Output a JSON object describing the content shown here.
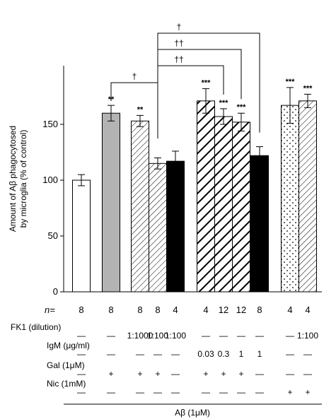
{
  "chart_data": {
    "type": "bar",
    "ylabel_lines": [
      "Amount of Aβ phagocytosed",
      "by microglia (% of control)"
    ],
    "ylim": [
      0,
      200
    ],
    "yticks": [
      "0",
      "50",
      "100",
      "150"
    ],
    "ytick_values": [
      0,
      50,
      100,
      150
    ],
    "bars": [
      {
        "value": 100,
        "error": 5,
        "fill": "white",
        "stars": "",
        "n": "8"
      },
      {
        "value": 160,
        "error": 7,
        "fill": "gray",
        "stars": "**",
        "n": "8"
      },
      {
        "value": 153,
        "error": 5,
        "fill": "hatch-light",
        "stars": "**",
        "n": "8"
      },
      {
        "value": 115,
        "error": 5,
        "fill": "hatch-light",
        "stars": "",
        "n": "8"
      },
      {
        "value": 117,
        "error": 9,
        "fill": "black",
        "stars": "",
        "n": "4"
      },
      {
        "value": 171,
        "error": 11,
        "fill": "hatch-bold",
        "stars": "***",
        "n": "4"
      },
      {
        "value": 157,
        "error": 7,
        "fill": "hatch-bold",
        "stars": "***",
        "n": "12"
      },
      {
        "value": 152,
        "error": 8,
        "fill": "hatch-bold",
        "stars": "***",
        "n": "12"
      },
      {
        "value": 122,
        "error": 8,
        "fill": "black",
        "stars": "",
        "n": "8"
      },
      {
        "value": 167,
        "error": 16,
        "fill": "dots",
        "stars": "***",
        "n": "4"
      },
      {
        "value": 171,
        "error": 6,
        "fill": "hatch-light",
        "stars": "***",
        "n": "4"
      }
    ],
    "brackets": [
      {
        "from": 1,
        "to": 3,
        "label": "†"
      },
      {
        "from": 3,
        "to": 6,
        "label": "††"
      },
      {
        "from": 3,
        "to": 7,
        "label": "††"
      },
      {
        "from": 3,
        "to": 8,
        "label": "†"
      }
    ]
  },
  "table": {
    "n_label": "n=",
    "rows": [
      {
        "label": "FK1 (dilution)",
        "cells": [
          "—",
          "—",
          "1:1000",
          "1:100",
          "1:100",
          "—",
          "—",
          "—",
          "—",
          "—",
          "1:100"
        ]
      },
      {
        "label": "IgM (μg/ml)",
        "cells": [
          "—",
          "—",
          "—",
          "—",
          "—",
          "0.03",
          "0.3",
          "1",
          "1",
          "—",
          "—"
        ]
      },
      {
        "label": "Gal (1μM)",
        "cells": [
          "—",
          "+",
          "+",
          "+",
          "—",
          "+",
          "+",
          "+",
          "—",
          "—",
          "—"
        ]
      },
      {
        "label": "Nic (1mM)",
        "cells": [
          "—",
          "—",
          "—",
          "—",
          "—",
          "—",
          "—",
          "—",
          "—",
          "+",
          "+"
        ]
      }
    ],
    "footer": "Aβ (1μM)"
  },
  "colors": {
    "gray": "#b3b3b3",
    "black": "#000000",
    "white": "#ffffff"
  }
}
